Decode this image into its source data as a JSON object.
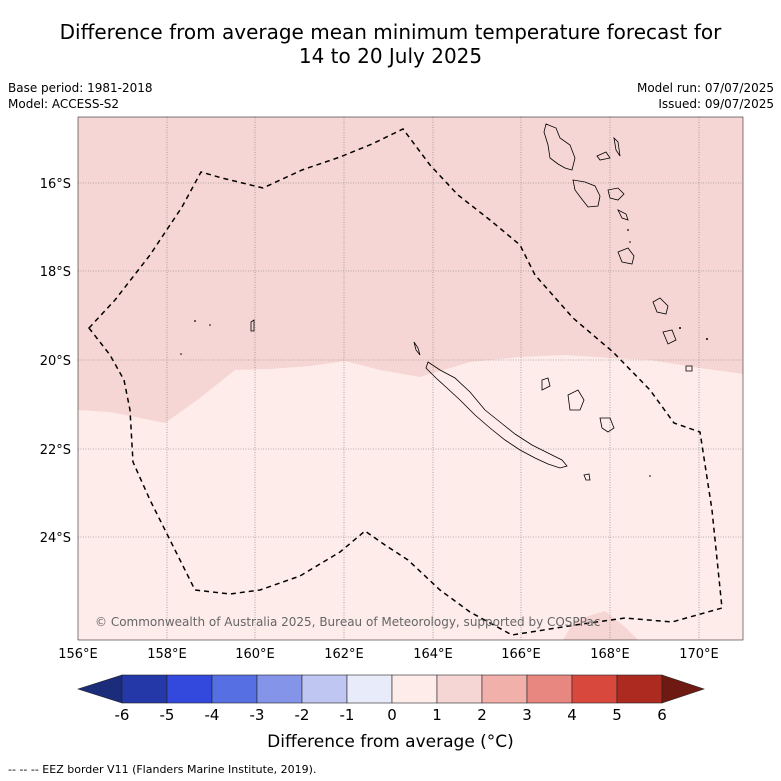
{
  "header": {
    "title_line1": "Difference from average mean minimum temperature forecast for",
    "title_line2": "14 to 20 July 2025",
    "base_period": "Base period: 1981-2018",
    "model": "Model: ACCESS-S2",
    "model_run": "Model run: 07/07/2025",
    "issued": "Issued: 09/07/2025"
  },
  "map": {
    "lat_labels": [
      "16°S",
      "18°S",
      "20°S",
      "22°S",
      "24°S"
    ],
    "lon_labels": [
      "156°E",
      "158°E",
      "160°E",
      "162°E",
      "164°E",
      "166°E",
      "168°E",
      "170°E"
    ],
    "copyright": "© Commonwealth of Australia 2025, Bureau of Meteorology, supported by COSPPac",
    "fill_colors": {
      "band_0_1": "#fdecea",
      "band_1_2": "#f6d6d4",
      "band_2_3": "#f2b0ab"
    }
  },
  "colorbar": {
    "title": "Difference from average (°C)",
    "tick_labels": [
      "-6",
      "-5",
      "-4",
      "-3",
      "-2",
      "-1",
      "0",
      "1",
      "2",
      "3",
      "4",
      "5",
      "6"
    ],
    "colors": [
      "#1a2c7a",
      "#2438a8",
      "#3349dd",
      "#5670e4",
      "#8495e9",
      "#c0c6f2",
      "#e8ebfa",
      "#fdecea",
      "#f6d6d4",
      "#f2b0ab",
      "#e8877f",
      "#d9483c",
      "#ac2a20",
      "#6e1a12"
    ]
  },
  "footer": {
    "legend": "--  --  -- EEZ border V11 (Flanders Marine Institute, 2019)."
  }
}
